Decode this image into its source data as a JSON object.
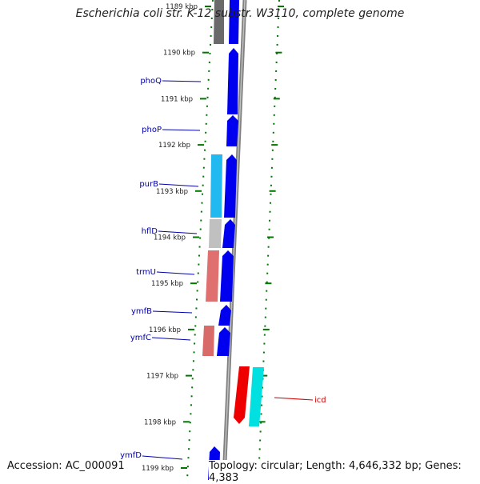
{
  "title": "Escherichia coli str. K-12 substr. W3110, complete genome",
  "accession_text": "Accession: AC_000091",
  "topology_text": "Topology: circular; Length: 4,646,332 bp; Genes: 4,383",
  "colors": {
    "gene_blue": "#0000ee",
    "gene_red": "#ee0000",
    "gene_cyan": "#00e0e0",
    "gene_label": "#0000aa",
    "gene_label_red": "#cc0000",
    "tick_green": "#007700",
    "scale_text": "#222222",
    "spine_gray": "#808080"
  },
  "scale": {
    "unit": "kbp",
    "ticks": [
      "1189 kbp",
      "1190 kbp",
      "1191 kbp",
      "1192 kbp",
      "1193 kbp",
      "1194 kbp",
      "1195 kbp",
      "1196 kbp",
      "1197 kbp",
      "1198 kbp",
      "1199 kbp"
    ]
  },
  "genes": [
    {
      "name": "",
      "strand": "+"
    },
    {
      "name": "phoQ",
      "strand": "+"
    },
    {
      "name": "phoP",
      "strand": "+"
    },
    {
      "name": "purB",
      "strand": "+"
    },
    {
      "name": "hflD",
      "strand": "+"
    },
    {
      "name": "trmU",
      "strand": "+"
    },
    {
      "name": "ymfB",
      "strand": "+"
    },
    {
      "name": "ymfC",
      "strand": "+"
    },
    {
      "name": "icd",
      "strand": "-"
    },
    {
      "name": "ymfD",
      "strand": "+"
    }
  ]
}
